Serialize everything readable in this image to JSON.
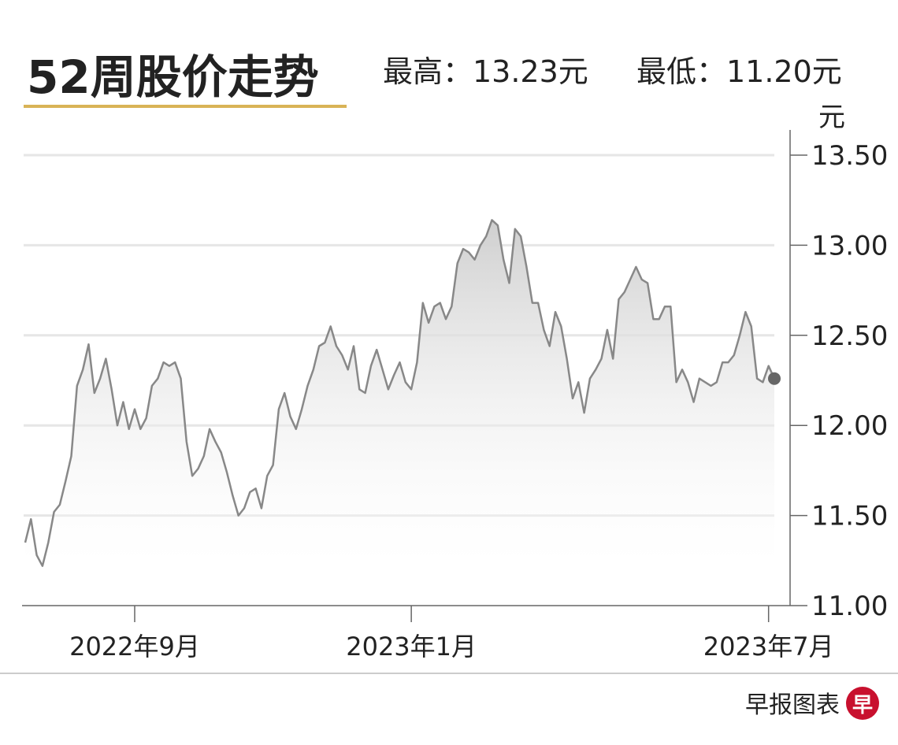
{
  "chart_data": {
    "type": "line",
    "title": "52周股价走势",
    "high": "最高：13.23元",
    "low": "最低：11.20元",
    "unit": "元",
    "source": "早报图表",
    "logo": "早",
    "series": [
      {
        "color": "#888888",
        "values": [
          11.35,
          11.48,
          11.28,
          11.22,
          11.35,
          11.52,
          11.56,
          11.69,
          11.83,
          12.22,
          12.31,
          12.45,
          12.18,
          12.26,
          12.37,
          12.2,
          12.0,
          12.13,
          11.98,
          12.09,
          11.98,
          12.04,
          12.22,
          12.26,
          12.35,
          12.33,
          12.35,
          12.26,
          11.91,
          11.72,
          11.76,
          11.83,
          11.98,
          11.91,
          11.85,
          11.74,
          11.61,
          11.5,
          11.54,
          11.63,
          11.65,
          11.54,
          11.72,
          11.78,
          12.09,
          12.18,
          12.05,
          11.98,
          12.09,
          12.22,
          12.31,
          12.44,
          12.46,
          12.55,
          12.44,
          12.39,
          12.31,
          12.44,
          12.2,
          12.18,
          12.33,
          12.42,
          12.31,
          12.2,
          12.28,
          12.35,
          12.24,
          12.2,
          12.35,
          12.68,
          12.57,
          12.66,
          12.68,
          12.59,
          12.66,
          12.9,
          12.98,
          12.96,
          12.92,
          13.0,
          13.05,
          13.14,
          13.11,
          12.92,
          12.79,
          13.09,
          13.05,
          12.88,
          12.68,
          12.68,
          12.53,
          12.44,
          12.63,
          12.55,
          12.37,
          12.15,
          12.24,
          12.07,
          12.26,
          12.31,
          12.37,
          12.53,
          12.37,
          12.7,
          12.74,
          12.81,
          12.88,
          12.81,
          12.79,
          12.59,
          12.59,
          12.66,
          12.66,
          12.24,
          12.31,
          12.24,
          12.13,
          12.26,
          12.24,
          12.22,
          12.24,
          12.35,
          12.35,
          12.39,
          12.5,
          12.63,
          12.55,
          12.26,
          12.24,
          12.33,
          12.26
        ]
      }
    ],
    "xlim": [
      0,
      130
    ],
    "xticks": [
      {
        "value": 19,
        "label": "2022年9月"
      },
      {
        "value": 67,
        "label": "2023年1月"
      },
      {
        "value": 129,
        "label": "2023年7月"
      }
    ],
    "ylim": [
      11,
      13.5
    ],
    "yticks": [
      {
        "value": 11,
        "label": "11.00"
      },
      {
        "value": 11.5,
        "label": "11.50"
      },
      {
        "value": 12,
        "label": "12.00"
      },
      {
        "value": 12.5,
        "label": "12.50"
      },
      {
        "value": 13,
        "label": "13.00"
      },
      {
        "value": 13.5,
        "label": "13.50"
      }
    ],
    "grid": true
  }
}
